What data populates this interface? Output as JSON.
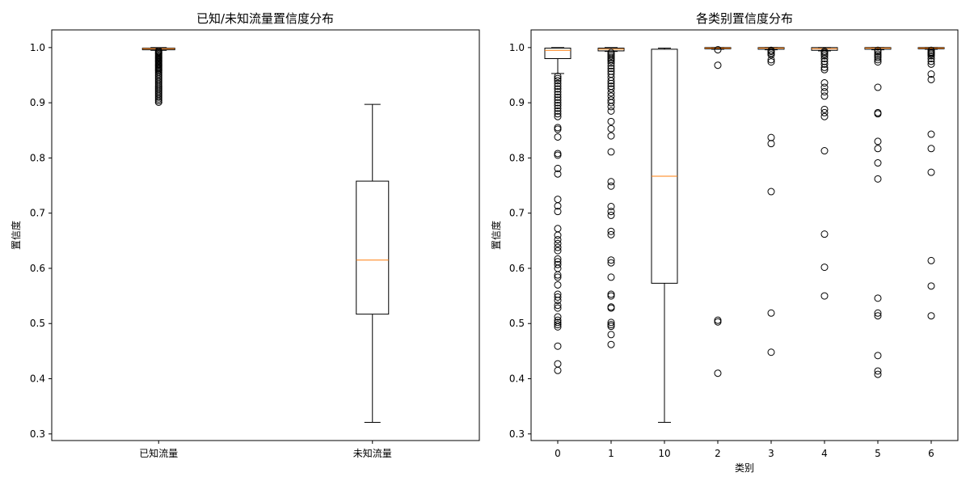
{
  "chart_data": [
    {
      "type": "box",
      "title": "已知/未知流量置信度分布",
      "xlabel": "",
      "ylabel": "置信度",
      "ylim": [
        0.288,
        1.032
      ],
      "yticks": [
        0.3,
        0.4,
        0.5,
        0.6,
        0.7,
        0.8,
        0.9,
        1.0
      ],
      "categories": [
        "已知流量",
        "未知流量"
      ],
      "boxes": [
        {
          "category": "已知流量",
          "whisker_low": 0.995,
          "q1": 0.996,
          "median": 0.998,
          "q3": 0.999,
          "whisker_high": 1.0,
          "outliers": [
            0.994,
            0.992,
            0.99,
            0.988,
            0.986,
            0.984,
            0.982,
            0.98,
            0.978,
            0.976,
            0.974,
            0.972,
            0.97,
            0.968,
            0.966,
            0.964,
            0.962,
            0.96,
            0.958,
            0.955,
            0.952,
            0.949,
            0.946,
            0.943,
            0.94,
            0.937,
            0.934,
            0.931,
            0.928,
            0.925,
            0.922,
            0.919,
            0.916,
            0.913,
            0.91,
            0.907,
            0.904,
            0.901
          ]
        },
        {
          "category": "未知流量",
          "whisker_low": 0.321,
          "q1": 0.517,
          "median": 0.615,
          "q3": 0.758,
          "whisker_high": 0.897,
          "outliers": []
        }
      ],
      "grid": false,
      "box_color": "#000000",
      "median_color": "#ff7f0e"
    },
    {
      "type": "box",
      "title": "各类别置信度分布",
      "xlabel": "类别",
      "ylabel": "置信度",
      "ylim": [
        0.288,
        1.032
      ],
      "yticks": [
        0.3,
        0.4,
        0.5,
        0.6,
        0.7,
        0.8,
        0.9,
        1.0
      ],
      "categories": [
        "0",
        "1",
        "10",
        "2",
        "3",
        "4",
        "5",
        "6"
      ],
      "boxes": [
        {
          "category": "0",
          "whisker_low": 0.953,
          "q1": 0.98,
          "median": 0.995,
          "q3": 0.999,
          "whisker_high": 1.0,
          "outliers": [
            0.948,
            0.944,
            0.94,
            0.935,
            0.93,
            0.925,
            0.92,
            0.915,
            0.91,
            0.905,
            0.9,
            0.895,
            0.89,
            0.885,
            0.88,
            0.875,
            0.855,
            0.852,
            0.838,
            0.808,
            0.805,
            0.781,
            0.771,
            0.725,
            0.713,
            0.703,
            0.672,
            0.66,
            0.652,
            0.645,
            0.638,
            0.632,
            0.617,
            0.612,
            0.607,
            0.6,
            0.588,
            0.584,
            0.57,
            0.553,
            0.548,
            0.542,
            0.533,
            0.528,
            0.512,
            0.506,
            0.502,
            0.498,
            0.494,
            0.459,
            0.427,
            0.415
          ]
        },
        {
          "category": "1",
          "whisker_low": 0.993,
          "q1": 0.994,
          "median": 0.997,
          "q3": 0.999,
          "whisker_high": 1.0,
          "outliers": [
            0.991,
            0.988,
            0.985,
            0.982,
            0.979,
            0.976,
            0.972,
            0.967,
            0.962,
            0.957,
            0.952,
            0.946,
            0.94,
            0.935,
            0.93,
            0.925,
            0.918,
            0.912,
            0.905,
            0.9,
            0.893,
            0.885,
            0.866,
            0.853,
            0.84,
            0.811,
            0.757,
            0.749,
            0.712,
            0.703,
            0.696,
            0.667,
            0.661,
            0.615,
            0.61,
            0.584,
            0.553,
            0.55,
            0.53,
            0.528,
            0.502,
            0.498,
            0.495,
            0.48,
            0.462
          ]
        },
        {
          "category": "10",
          "whisker_low": 0.321,
          "q1": 0.573,
          "median": 0.767,
          "q3": 0.997,
          "whisker_high": 0.999,
          "outliers": []
        },
        {
          "category": "2",
          "whisker_low": 0.997,
          "q1": 0.998,
          "median": 0.999,
          "q3": 1.0,
          "whisker_high": 1.0,
          "outliers": [
            0.996,
            0.968,
            0.506,
            0.503,
            0.41
          ]
        },
        {
          "category": "3",
          "whisker_low": 0.996,
          "q1": 0.997,
          "median": 0.999,
          "q3": 1.0,
          "whisker_high": 1.0,
          "outliers": [
            0.995,
            0.993,
            0.99,
            0.987,
            0.978,
            0.974,
            0.837,
            0.826,
            0.739,
            0.519,
            0.448
          ]
        },
        {
          "category": "4",
          "whisker_low": 0.994,
          "q1": 0.995,
          "median": 0.998,
          "q3": 1.0,
          "whisker_high": 1.0,
          "outliers": [
            0.993,
            0.991,
            0.988,
            0.985,
            0.98,
            0.975,
            0.97,
            0.964,
            0.96,
            0.936,
            0.928,
            0.92,
            0.912,
            0.888,
            0.882,
            0.875,
            0.813,
            0.662,
            0.602,
            0.55
          ]
        },
        {
          "category": "5",
          "whisker_low": 0.996,
          "q1": 0.997,
          "median": 0.999,
          "q3": 1.0,
          "whisker_high": 1.0,
          "outliers": [
            0.995,
            0.992,
            0.988,
            0.985,
            0.982,
            0.978,
            0.974,
            0.928,
            0.882,
            0.88,
            0.83,
            0.817,
            0.791,
            0.762,
            0.546,
            0.519,
            0.514,
            0.442,
            0.414,
            0.408
          ]
        },
        {
          "category": "6",
          "whisker_low": 0.997,
          "q1": 0.998,
          "median": 0.999,
          "q3": 1.0,
          "whisker_high": 1.0,
          "outliers": [
            0.995,
            0.992,
            0.99,
            0.988,
            0.985,
            0.98,
            0.975,
            0.97,
            0.952,
            0.942,
            0.843,
            0.817,
            0.774,
            0.614,
            0.568,
            0.514
          ]
        }
      ],
      "grid": false,
      "box_color": "#000000",
      "median_color": "#ff7f0e"
    }
  ]
}
